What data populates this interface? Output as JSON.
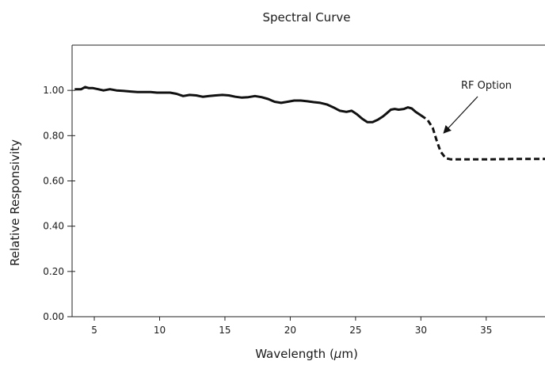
{
  "chart_data": {
    "type": "line",
    "title": "Spectral Curve",
    "xlabel": "Wavelength (μm)",
    "ylabel": "Relative Responsivity",
    "xlim": [
      3.3,
      39.5
    ],
    "ylim": [
      0,
      1.2
    ],
    "grid": false,
    "x_ticks": [
      5,
      10,
      15,
      20,
      25,
      30,
      35
    ],
    "y_ticks": [
      0.0,
      0.2,
      0.4,
      0.6,
      0.8,
      1.0
    ],
    "x_tick_labels": [
      "5",
      "10",
      "15",
      "20",
      "25",
      "30",
      "35"
    ],
    "y_tick_labels": [
      "0.00",
      "0.20",
      "0.40",
      "0.60",
      "0.80",
      "1.00"
    ],
    "series": [
      {
        "style": "solid",
        "color": "#111111",
        "points": [
          [
            3.5,
            1.005
          ],
          [
            4.0,
            1.005
          ],
          [
            4.3,
            1.015
          ],
          [
            4.6,
            1.01
          ],
          [
            4.9,
            1.01
          ],
          [
            5.3,
            1.005
          ],
          [
            5.7,
            1.0
          ],
          [
            6.2,
            1.005
          ],
          [
            6.7,
            1.0
          ],
          [
            7.2,
            0.998
          ],
          [
            7.8,
            0.995
          ],
          [
            8.3,
            0.993
          ],
          [
            8.8,
            0.993
          ],
          [
            9.3,
            0.993
          ],
          [
            9.8,
            0.99
          ],
          [
            10.3,
            0.99
          ],
          [
            10.8,
            0.99
          ],
          [
            11.3,
            0.985
          ],
          [
            11.8,
            0.975
          ],
          [
            12.3,
            0.98
          ],
          [
            12.8,
            0.978
          ],
          [
            13.3,
            0.972
          ],
          [
            13.8,
            0.975
          ],
          [
            14.3,
            0.978
          ],
          [
            14.8,
            0.98
          ],
          [
            15.3,
            0.978
          ],
          [
            15.8,
            0.972
          ],
          [
            16.3,
            0.968
          ],
          [
            16.8,
            0.97
          ],
          [
            17.3,
            0.975
          ],
          [
            17.8,
            0.97
          ],
          [
            18.3,
            0.962
          ],
          [
            18.8,
            0.95
          ],
          [
            19.3,
            0.945
          ],
          [
            19.8,
            0.95
          ],
          [
            20.3,
            0.955
          ],
          [
            20.8,
            0.955
          ],
          [
            21.3,
            0.952
          ],
          [
            21.8,
            0.948
          ],
          [
            22.3,
            0.945
          ],
          [
            22.8,
            0.938
          ],
          [
            23.3,
            0.925
          ],
          [
            23.8,
            0.91
          ],
          [
            24.3,
            0.905
          ],
          [
            24.7,
            0.91
          ],
          [
            25.1,
            0.895
          ],
          [
            25.5,
            0.875
          ],
          [
            25.9,
            0.86
          ],
          [
            26.3,
            0.86
          ],
          [
            26.7,
            0.87
          ],
          [
            27.1,
            0.885
          ],
          [
            27.4,
            0.9
          ],
          [
            27.7,
            0.915
          ],
          [
            28.0,
            0.918
          ],
          [
            28.3,
            0.915
          ],
          [
            28.7,
            0.918
          ],
          [
            29.0,
            0.925
          ],
          [
            29.3,
            0.92
          ],
          [
            29.6,
            0.905
          ],
          [
            30.0,
            0.89
          ]
        ]
      },
      {
        "name": "RF Option",
        "style": "dashed",
        "color": "#111111",
        "points": [
          [
            30.0,
            0.89
          ],
          [
            30.5,
            0.87
          ],
          [
            30.9,
            0.835
          ],
          [
            31.2,
            0.78
          ],
          [
            31.5,
            0.73
          ],
          [
            31.9,
            0.7
          ],
          [
            32.3,
            0.695
          ],
          [
            33.5,
            0.695
          ],
          [
            35.0,
            0.695
          ],
          [
            37.0,
            0.697
          ],
          [
            39.5,
            0.697
          ]
        ]
      }
    ],
    "annotations": [
      {
        "text": "RF Option",
        "points_to": [
          31.2,
          0.78
        ]
      }
    ]
  }
}
